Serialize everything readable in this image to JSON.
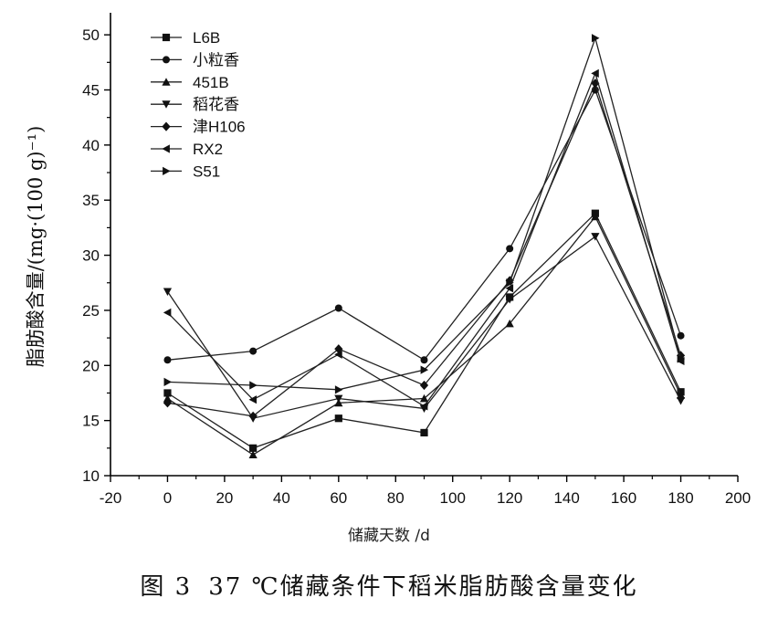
{
  "chart_data": {
    "type": "line",
    "title": "",
    "xlabel": "储藏天数 /d",
    "ylabel": "脂肪酸含量/(mg·(100 g)⁻¹)",
    "xlim": [
      -20,
      200
    ],
    "ylim": [
      10,
      52
    ],
    "xticks": [
      -20,
      0,
      20,
      40,
      60,
      80,
      100,
      120,
      140,
      160,
      180,
      200
    ],
    "yticks": [
      10,
      15,
      20,
      25,
      30,
      35,
      40,
      45,
      50
    ],
    "x": [
      0,
      30,
      60,
      90,
      120,
      150,
      180
    ],
    "legend_position": "top-left",
    "grid": false,
    "series": [
      {
        "name": "L6B",
        "marker": "square",
        "values": [
          17.5,
          12.5,
          15.2,
          13.9,
          26.2,
          33.8,
          17.6
        ]
      },
      {
        "name": "小粒香",
        "marker": "circle",
        "values": [
          20.5,
          21.3,
          25.2,
          20.5,
          30.6,
          45.0,
          22.7
        ]
      },
      {
        "name": "451B",
        "marker": "triangle-up",
        "values": [
          17.0,
          11.9,
          16.6,
          17.0,
          23.8,
          33.5,
          17.3
        ]
      },
      {
        "name": "稻花香",
        "marker": "triangle-down",
        "values": [
          26.7,
          15.2,
          17.0,
          16.1,
          26.0,
          31.7,
          16.8
        ]
      },
      {
        "name": "津H106",
        "marker": "diamond",
        "values": [
          16.6,
          15.4,
          21.5,
          18.2,
          27.7,
          45.6,
          20.9
        ]
      },
      {
        "name": "RX2",
        "marker": "triangle-left",
        "values": [
          24.8,
          16.9,
          21.0,
          16.3,
          27.0,
          46.5,
          20.4
        ]
      },
      {
        "name": "S51",
        "marker": "triangle-right",
        "values": [
          18.5,
          18.2,
          17.8,
          19.6,
          27.5,
          49.7,
          20.6
        ]
      }
    ]
  },
  "figure_caption": {
    "number": "图 3",
    "text": "37 ℃储藏条件下稻米脂肪酸含量变化"
  }
}
